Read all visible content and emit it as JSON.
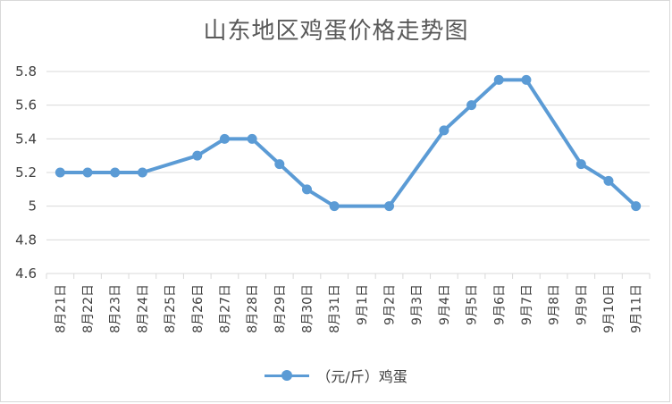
{
  "chart_data": {
    "type": "line",
    "title": "山东地区鸡蛋价格走势图",
    "xlabel": "",
    "ylabel": "",
    "ylim": [
      4.6,
      5.8
    ],
    "yticks": [
      "4.6",
      "4.8",
      "5",
      "5.2",
      "5.4",
      "5.6",
      "5.8"
    ],
    "grid": true,
    "legend_position": "bottom",
    "categories": [
      "8月21日",
      "8月22日",
      "8月23日",
      "8月24日",
      "8月25日",
      "8月26日",
      "8月27日",
      "8月28日",
      "8月29日",
      "8月30日",
      "8月31日",
      "9月1日",
      "9月2日",
      "9月3日",
      "9月4日",
      "9月5日",
      "9月6日",
      "9月7日",
      "9月8日",
      "9月9日",
      "9月10日",
      "9月11日"
    ],
    "series": [
      {
        "name": "（元/斤）鸡蛋",
        "color": "#5b9bd5",
        "values": [
          5.2,
          5.2,
          5.2,
          5.2,
          null,
          5.3,
          5.4,
          5.4,
          5.25,
          5.1,
          5.0,
          null,
          5.0,
          null,
          5.45,
          5.6,
          5.75,
          5.75,
          null,
          5.25,
          5.15,
          5.0
        ]
      }
    ]
  }
}
